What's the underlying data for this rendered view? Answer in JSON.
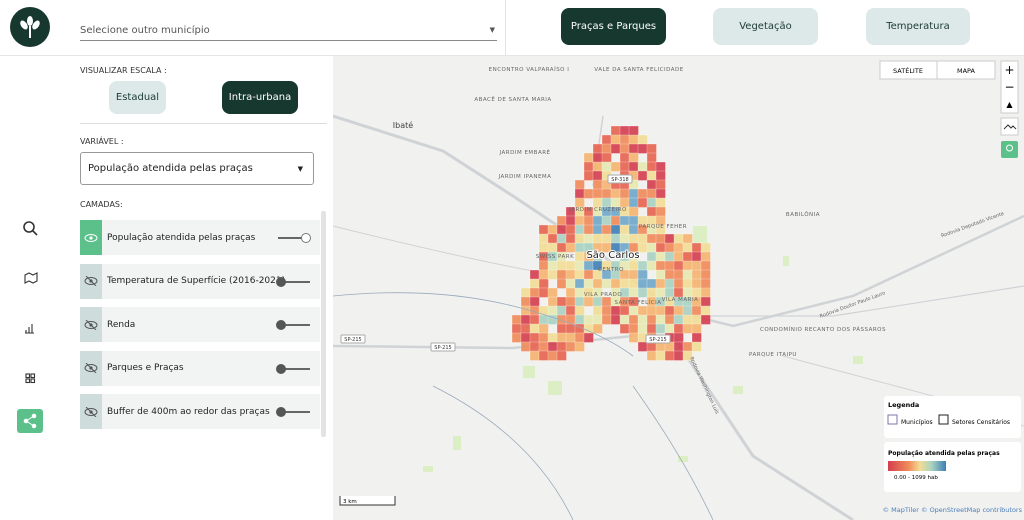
{
  "header": {
    "municipality_placeholder": "Selecione outro município",
    "tabs": [
      "Praças e Parques",
      "Vegetação",
      "Temperatura"
    ]
  },
  "sidebar": {
    "scale_label": "VISUALIZAR ESCALA :",
    "scale_options": [
      "Estadual",
      "Intra-urbana"
    ],
    "variable_label": "VARIÁVEL :",
    "variable": "População atendida pelas praças",
    "layers_label": "CAMADAS:",
    "layers": [
      "População atendida pelas praças",
      "Temperatura de Superfície (2016-2021)",
      "Renda",
      "Parques e Praças",
      "Buffer de 400m ao redor das praças"
    ]
  },
  "map": {
    "controls": [
      "SATÉLITE",
      "MAPA"
    ],
    "labels": [
      "ENCONTRO VALPARAÍSO I",
      "VALE DA SANTA FELICIDADE",
      "ABACÊ DE SANTA MARIA",
      "Ibaté",
      "BABILÔNIA",
      "São Carlos",
      "CONDOMÍNIO RECANTO DOS PÁSSAROS",
      "PARQUE ITAIPU",
      "Rodovia Deputado Vicente",
      "Rodovia Doutor Paulo Lauro",
      "Rodovia Washington Luís",
      "SP-318",
      "SP-215",
      "SP-215",
      "SP-215",
      "JARDIM EMBARÉ",
      "JARDIM IPANEMA",
      "JARDIM CRUZEIRO",
      "SWISS PARK",
      "CENTRO",
      "VILA PRADO",
      "SANTA FELÍCIA",
      "PARQUE FEHER",
      "VILA MARIA"
    ],
    "legend": {
      "title": "Legenda",
      "items": [
        "Municípios",
        "Setores Censitários"
      ]
    },
    "scale_legend": {
      "title": "População atendida pelas praças",
      "range": "0.00 - 1099 hab"
    },
    "scale_bar": "3 km",
    "attribution": "© MapTiler © OpenStreetMap contributors"
  }
}
